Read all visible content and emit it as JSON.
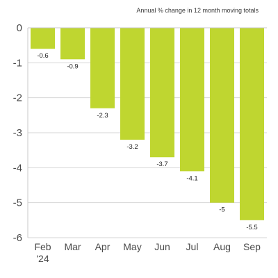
{
  "chart_data": {
    "type": "bar",
    "subtitle": "Annual % change in 12 month moving totals",
    "categories": [
      "Feb",
      "Mar",
      "Apr",
      "May",
      "Jun",
      "Jul",
      "Aug",
      "Sep"
    ],
    "year_label": "'24",
    "values": [
      -0.6,
      -0.9,
      -2.3,
      -3.2,
      -3.7,
      -4.1,
      -5,
      -5.5
    ],
    "value_labels": [
      "-0.6",
      "-0.9",
      "-2.3",
      "-3.2",
      "-3.7",
      "-4.1",
      "-5",
      "-5.5"
    ],
    "yticks": [
      0,
      -1,
      -2,
      -3,
      -4,
      -5,
      -6
    ],
    "ylim": [
      -6,
      0
    ],
    "grid": "horizontal",
    "bar_color": "#bfd630",
    "grid_color": "#d4d4d4",
    "axis_color": "#c8c8c8"
  }
}
